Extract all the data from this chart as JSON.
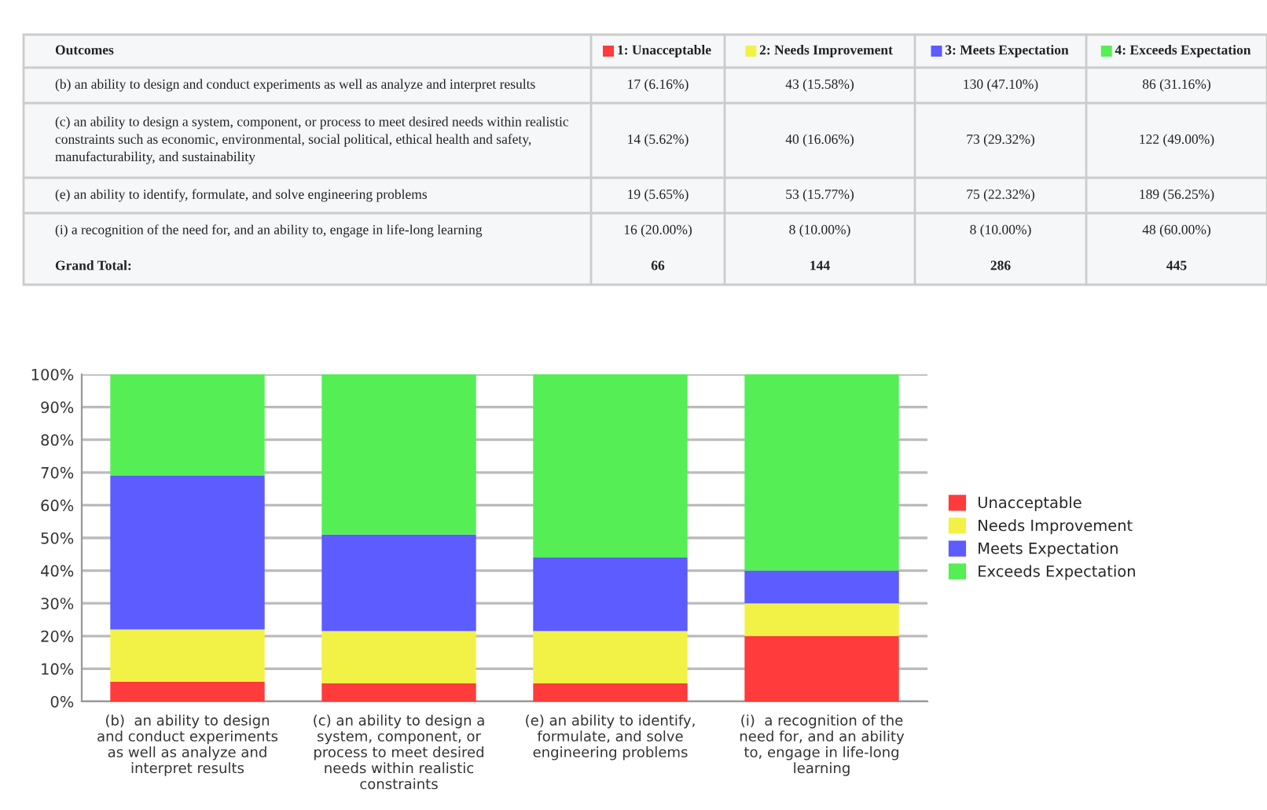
{
  "chart_data": {
    "type": "bar",
    "stacked": true,
    "categories": [
      "(b)  an ability to design and conduct experiments as well as analyze and interpret results",
      "(c) an ability to design a system, component, or process to meet desired needs within realistic constraints",
      "(e) an ability to identify, formulate, and solve engineering problems",
      "(i)  a recognition of the need for, and an ability to, engage in life-long learning"
    ],
    "series": [
      {
        "name": "Unacceptable",
        "color": "#ff3b3b",
        "values": [
          6,
          5.5,
          5.5,
          20
        ]
      },
      {
        "name": "Needs Improvement",
        "color": "#f2f246",
        "values": [
          16,
          16,
          16,
          10
        ]
      },
      {
        "name": "Meets Expectation",
        "color": "#5c5cff",
        "values": [
          47,
          29.5,
          22.5,
          10
        ]
      },
      {
        "name": "Exceeds Expectation",
        "color": "#55ee55",
        "values": [
          31,
          49,
          56,
          60
        ]
      }
    ],
    "ylim": [
      0,
      100
    ],
    "yticks": [
      {
        "value": 0,
        "label": "0%"
      },
      {
        "value": 10,
        "label": "10%"
      },
      {
        "value": 20,
        "label": "20%"
      },
      {
        "value": 30,
        "label": "30%"
      },
      {
        "value": 40,
        "label": "40%"
      },
      {
        "value": 50,
        "label": "50%"
      },
      {
        "value": 60,
        "label": "60%"
      },
      {
        "value": 70,
        "label": "70%"
      },
      {
        "value": 80,
        "label": "80%"
      },
      {
        "value": 90,
        "label": "90%"
      },
      {
        "value": 100,
        "label": "100%"
      }
    ],
    "grid": "y",
    "legend": "right",
    "annotations": [
      "Outcomes",
      "1: Unacceptable",
      "2: Needs Improvement",
      "3: Meets Expectation",
      "4: Exceeds Expectation",
      "(b) an ability to design and conduct experiments as well as analyze and interpret results",
      "17 (6.16%)",
      "43 (15.58%)",
      "130 (47.10%)",
      "86 (31.16%)",
      "(c) an ability to design a system, component, or process to meet desired needs within realistic constraints such as economic, environmental, social political, ethical health and safety, manufacturability, and sustainability",
      "14 (5.62%)",
      "40 (16.06%)",
      "73 (29.32%)",
      "122 (49.00%)",
      "(e) an ability to identify, formulate, and solve engineering problems",
      "19 (5.65%)",
      "53 (15.77%)",
      "75 (22.32%)",
      "189 (56.25%)",
      "(i) a recognition of the need for, and an ability to, engage in life-long learning",
      "16 (20.00%)",
      "8 (10.00%)",
      "8 (10.00%)",
      "48 (60.00%)",
      "Grand Total:",
      "66",
      "144",
      "286",
      "445"
    ]
  }
}
